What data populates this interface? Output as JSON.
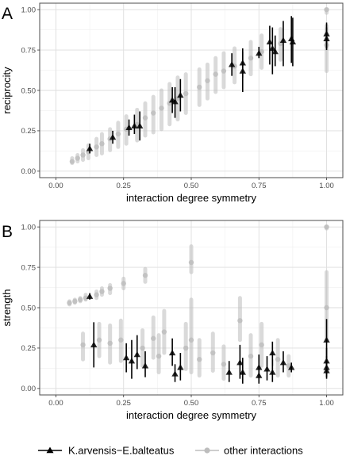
{
  "legend": {
    "focal_label": "K.arvensis−E.balteatus",
    "other_label": "other interactions"
  },
  "colors": {
    "focal": "#000000",
    "other": "#bdbdbd",
    "panel_border": "#4d4d4d",
    "grid_major": "#dedede",
    "grid_minor": "#efefef"
  },
  "chart_data": [
    {
      "type": "scatter",
      "panel_tag": "A",
      "xlabel": "interaction degree symmetry",
      "ylabel": "reciprocity",
      "xlim": [
        -0.06,
        1.06
      ],
      "ylim": [
        -0.04,
        1.04
      ],
      "x_ticks": [
        0,
        0.25,
        0.5,
        0.75,
        1
      ],
      "x_tick_labels": [
        "0.00",
        "0.25",
        "0.50",
        "0.75",
        "1.00"
      ],
      "y_ticks": [
        0,
        0.25,
        0.5,
        0.75,
        1
      ],
      "y_tick_labels": [
        "0.00",
        "0.25",
        "0.50",
        "0.75",
        "1.00"
      ],
      "grid": true,
      "series": [
        {
          "role": "focal",
          "marker": "triangle",
          "points": [
            {
              "x": 0.125,
              "y": 0.14,
              "lo": 0.11,
              "hi": 0.17
            },
            {
              "x": 0.21,
              "y": 0.21,
              "lo": 0.17,
              "hi": 0.25
            },
            {
              "x": 0.27,
              "y": 0.27,
              "lo": 0.22,
              "hi": 0.32
            },
            {
              "x": 0.29,
              "y": 0.28,
              "lo": 0.23,
              "hi": 0.35
            },
            {
              "x": 0.31,
              "y": 0.28,
              "lo": 0.19,
              "hi": 0.37
            },
            {
              "x": 0.43,
              "y": 0.44,
              "lo": 0.36,
              "hi": 0.52
            },
            {
              "x": 0.44,
              "y": 0.43,
              "lo": 0.33,
              "hi": 0.52
            },
            {
              "x": 0.46,
              "y": 0.47,
              "lo": 0.37,
              "hi": 0.57
            },
            {
              "x": 0.65,
              "y": 0.66,
              "lo": 0.59,
              "hi": 0.73
            },
            {
              "x": 0.69,
              "y": 0.67,
              "lo": 0.58,
              "hi": 0.74
            },
            {
              "x": 0.69,
              "y": 0.62,
              "lo": 0.49,
              "hi": 0.76
            },
            {
              "x": 0.75,
              "y": 0.73,
              "lo": 0.7,
              "hi": 0.77
            },
            {
              "x": 0.79,
              "y": 0.8,
              "lo": 0.66,
              "hi": 0.9
            },
            {
              "x": 0.8,
              "y": 0.76,
              "lo": 0.6,
              "hi": 0.89
            },
            {
              "x": 0.81,
              "y": 0.74,
              "lo": 0.65,
              "hi": 0.84
            },
            {
              "x": 0.84,
              "y": 0.81,
              "lo": 0.65,
              "hi": 0.93
            },
            {
              "x": 0.87,
              "y": 0.82,
              "lo": 0.67,
              "hi": 0.96
            },
            {
              "x": 0.875,
              "y": 0.8,
              "lo": 0.65,
              "hi": 0.95
            },
            {
              "x": 1.0,
              "y": 0.85,
              "lo": 0.76,
              "hi": 0.92
            },
            {
              "x": 1.0,
              "y": 0.82,
              "lo": 0.75,
              "hi": 0.89
            }
          ]
        },
        {
          "role": "other",
          "marker": "circle",
          "points": [
            {
              "x": 0.06,
              "y": 0.06,
              "lo": 0.05,
              "hi": 0.08
            },
            {
              "x": 0.08,
              "y": 0.08,
              "lo": 0.06,
              "hi": 0.1
            },
            {
              "x": 0.1,
              "y": 0.1,
              "lo": 0.07,
              "hi": 0.13
            },
            {
              "x": 0.12,
              "y": 0.12,
              "lo": 0.08,
              "hi": 0.16
            },
            {
              "x": 0.15,
              "y": 0.15,
              "lo": 0.1,
              "hi": 0.2
            },
            {
              "x": 0.17,
              "y": 0.17,
              "lo": 0.11,
              "hi": 0.23
            },
            {
              "x": 0.2,
              "y": 0.2,
              "lo": 0.13,
              "hi": 0.26
            },
            {
              "x": 0.23,
              "y": 0.23,
              "lo": 0.15,
              "hi": 0.3
            },
            {
              "x": 0.26,
              "y": 0.26,
              "lo": 0.17,
              "hi": 0.34
            },
            {
              "x": 0.3,
              "y": 0.29,
              "lo": 0.19,
              "hi": 0.38
            },
            {
              "x": 0.33,
              "y": 0.33,
              "lo": 0.22,
              "hi": 0.42
            },
            {
              "x": 0.36,
              "y": 0.36,
              "lo": 0.24,
              "hi": 0.46
            },
            {
              "x": 0.39,
              "y": 0.39,
              "lo": 0.26,
              "hi": 0.5
            },
            {
              "x": 0.42,
              "y": 0.42,
              "lo": 0.29,
              "hi": 0.54
            },
            {
              "x": 0.45,
              "y": 0.45,
              "lo": 0.32,
              "hi": 0.58
            },
            {
              "x": 0.48,
              "y": 0.48,
              "lo": 0.36,
              "hi": 0.6
            },
            {
              "x": 0.53,
              "y": 0.52,
              "lo": 0.41,
              "hi": 0.63
            },
            {
              "x": 0.56,
              "y": 0.56,
              "lo": 0.45,
              "hi": 0.66
            },
            {
              "x": 0.59,
              "y": 0.6,
              "lo": 0.49,
              "hi": 0.7
            },
            {
              "x": 0.62,
              "y": 0.62,
              "lo": 0.52,
              "hi": 0.73
            },
            {
              "x": 0.66,
              "y": 0.65,
              "lo": 0.55,
              "hi": 0.76
            },
            {
              "x": 0.72,
              "y": 0.7,
              "lo": 0.6,
              "hi": 0.8
            },
            {
              "x": 0.76,
              "y": 0.74,
              "lo": 0.64,
              "hi": 0.84
            },
            {
              "x": 0.83,
              "y": 0.79,
              "lo": 0.69,
              "hi": 0.88
            },
            {
              "x": 1.0,
              "y": 1.0,
              "lo": 0.98,
              "hi": 1.0
            },
            {
              "x": 1.0,
              "y": 0.78,
              "lo": 0.62,
              "hi": 0.9
            }
          ]
        }
      ]
    },
    {
      "type": "scatter",
      "panel_tag": "B",
      "xlabel": "interaction degree symmetry",
      "ylabel": "strength",
      "xlim": [
        -0.06,
        1.06
      ],
      "ylim": [
        -0.04,
        1.04
      ],
      "x_ticks": [
        0,
        0.25,
        0.5,
        0.75,
        1
      ],
      "x_tick_labels": [
        "0.00",
        "0.25",
        "0.50",
        "0.75",
        "1.00"
      ],
      "y_ticks": [
        0,
        0.25,
        0.5,
        0.75,
        1
      ],
      "y_tick_labels": [
        "0.00",
        "0.25",
        "0.50",
        "0.75",
        "1.00"
      ],
      "grid": true,
      "series": [
        {
          "role": "focal",
          "marker": "triangle",
          "points": [
            {
              "x": 0.125,
              "y": 0.57,
              "lo": 0.55,
              "hi": 0.59
            },
            {
              "x": 0.14,
              "y": 0.27,
              "lo": 0.13,
              "hi": 0.41
            },
            {
              "x": 0.26,
              "y": 0.19,
              "lo": 0.1,
              "hi": 0.28
            },
            {
              "x": 0.28,
              "y": 0.17,
              "lo": 0.06,
              "hi": 0.3
            },
            {
              "x": 0.3,
              "y": 0.21,
              "lo": 0.12,
              "hi": 0.33
            },
            {
              "x": 0.33,
              "y": 0.14,
              "lo": 0.07,
              "hi": 0.23
            },
            {
              "x": 0.43,
              "y": 0.22,
              "lo": 0.14,
              "hi": 0.31
            },
            {
              "x": 0.44,
              "y": 0.09,
              "lo": 0.04,
              "hi": 0.15
            },
            {
              "x": 0.46,
              "y": 0.13,
              "lo": 0.05,
              "hi": 0.22
            },
            {
              "x": 0.64,
              "y": 0.1,
              "lo": 0.04,
              "hi": 0.17
            },
            {
              "x": 0.68,
              "y": 0.16,
              "lo": 0.06,
              "hi": 0.27
            },
            {
              "x": 0.69,
              "y": 0.1,
              "lo": 0.03,
              "hi": 0.19
            },
            {
              "x": 0.75,
              "y": 0.13,
              "lo": 0.06,
              "hi": 0.21
            },
            {
              "x": 0.75,
              "y": 0.08,
              "lo": 0.03,
              "hi": 0.13
            },
            {
              "x": 0.78,
              "y": 0.12,
              "lo": 0.05,
              "hi": 0.2
            },
            {
              "x": 0.8,
              "y": 0.22,
              "lo": 0.14,
              "hi": 0.29
            },
            {
              "x": 0.8,
              "y": 0.1,
              "lo": 0.04,
              "hi": 0.18
            },
            {
              "x": 0.84,
              "y": 0.16,
              "lo": 0.1,
              "hi": 0.23
            },
            {
              "x": 0.87,
              "y": 0.13,
              "lo": 0.1,
              "hi": 0.16
            },
            {
              "x": 1.0,
              "y": 0.3,
              "lo": 0.15,
              "hi": 0.43
            },
            {
              "x": 1.0,
              "y": 0.17,
              "lo": 0.09,
              "hi": 0.25
            },
            {
              "x": 1.0,
              "y": 0.13,
              "lo": 0.07,
              "hi": 0.2
            },
            {
              "x": 1.0,
              "y": 0.11,
              "lo": 0.06,
              "hi": 0.17
            }
          ]
        },
        {
          "role": "other",
          "marker": "circle",
          "points": [
            {
              "x": 0.05,
              "y": 0.53,
              "lo": 0.52,
              "hi": 0.54
            },
            {
              "x": 0.07,
              "y": 0.54,
              "lo": 0.53,
              "hi": 0.55
            },
            {
              "x": 0.09,
              "y": 0.55,
              "lo": 0.54,
              "hi": 0.56
            },
            {
              "x": 0.11,
              "y": 0.56,
              "lo": 0.55,
              "hi": 0.58
            },
            {
              "x": 0.15,
              "y": 0.58,
              "lo": 0.56,
              "hi": 0.6
            },
            {
              "x": 0.17,
              "y": 0.6,
              "lo": 0.58,
              "hi": 0.62
            },
            {
              "x": 0.2,
              "y": 0.62,
              "lo": 0.59,
              "hi": 0.64
            },
            {
              "x": 0.25,
              "y": 0.65,
              "lo": 0.62,
              "hi": 0.68
            },
            {
              "x": 0.33,
              "y": 0.7,
              "lo": 0.66,
              "hi": 0.74
            },
            {
              "x": 0.5,
              "y": 0.78,
              "lo": 0.72,
              "hi": 0.88
            },
            {
              "x": 1.0,
              "y": 1.0,
              "lo": 0.99,
              "hi": 1.0
            },
            {
              "x": 0.1,
              "y": 0.27,
              "lo": 0.18,
              "hi": 0.34
            },
            {
              "x": 0.16,
              "y": 0.3,
              "lo": 0.2,
              "hi": 0.4
            },
            {
              "x": 0.2,
              "y": 0.28,
              "lo": 0.16,
              "hi": 0.39
            },
            {
              "x": 0.24,
              "y": 0.3,
              "lo": 0.17,
              "hi": 0.42
            },
            {
              "x": 0.32,
              "y": 0.25,
              "lo": 0.14,
              "hi": 0.36
            },
            {
              "x": 0.36,
              "y": 0.31,
              "lo": 0.19,
              "hi": 0.44
            },
            {
              "x": 0.38,
              "y": 0.2,
              "lo": 0.1,
              "hi": 0.33
            },
            {
              "x": 0.4,
              "y": 0.35,
              "lo": 0.22,
              "hi": 0.48
            },
            {
              "x": 0.48,
              "y": 0.25,
              "lo": 0.12,
              "hi": 0.4
            },
            {
              "x": 0.5,
              "y": 0.3,
              "lo": 0.1,
              "hi": 0.55
            },
            {
              "x": 0.53,
              "y": 0.18,
              "lo": 0.08,
              "hi": 0.3
            },
            {
              "x": 0.58,
              "y": 0.22,
              "lo": 0.11,
              "hi": 0.34
            },
            {
              "x": 0.62,
              "y": 0.15,
              "lo": 0.06,
              "hi": 0.26
            },
            {
              "x": 0.68,
              "y": 0.42,
              "lo": 0.3,
              "hi": 0.56
            },
            {
              "x": 0.72,
              "y": 0.2,
              "lo": 0.08,
              "hi": 0.33
            },
            {
              "x": 0.76,
              "y": 0.27,
              "lo": 0.14,
              "hi": 0.4
            },
            {
              "x": 0.82,
              "y": 0.18,
              "lo": 0.08,
              "hi": 0.3
            },
            {
              "x": 0.86,
              "y": 0.14,
              "lo": 0.08,
              "hi": 0.2
            },
            {
              "x": 1.0,
              "y": 0.5,
              "lo": 0.3,
              "hi": 0.72
            }
          ]
        }
      ]
    }
  ]
}
